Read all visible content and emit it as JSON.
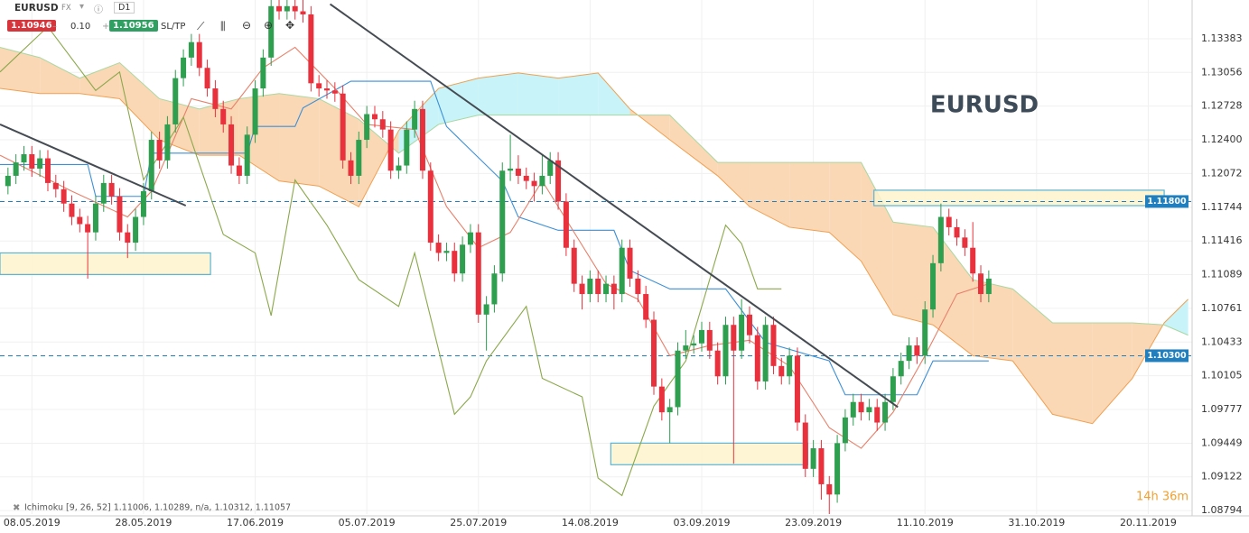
{
  "toolbar": {
    "symbol": "EURUSD",
    "market": "FX",
    "timeframe": "D1",
    "bid": "1.10946",
    "minus": "–",
    "volume": "0.10",
    "plus": "+",
    "ask": "1.10956",
    "sl_tp": "SL/TP"
  },
  "indicator_legend": "Ichimoku [9, 26, 52] 1.11006, 1.10289, n/a, 1.10312, 1.11057",
  "countdown": "14h 36m",
  "chart_data": {
    "type": "candlestick",
    "title": "EURUSD",
    "up_color": "#2e9e4f",
    "down_color": "#e8313d",
    "xlim": [
      -4,
      145.5
    ],
    "ylim": [
      1.0876,
      1.1376
    ],
    "grid": true,
    "xticks": [
      {
        "value": 0,
        "label": "08.05.2019"
      },
      {
        "value": 14,
        "label": "28.05.2019"
      },
      {
        "value": 28,
        "label": "17.06.2019"
      },
      {
        "value": 42,
        "label": "05.07.2019"
      },
      {
        "value": 56,
        "label": "25.07.2019"
      },
      {
        "value": 70,
        "label": "14.08.2019"
      },
      {
        "value": 84,
        "label": "03.09.2019"
      },
      {
        "value": 98,
        "label": "23.09.2019"
      },
      {
        "value": 112,
        "label": "11.10.2019"
      },
      {
        "value": 126,
        "label": "31.10.2019"
      },
      {
        "value": 140,
        "label": "20.11.2019"
      }
    ],
    "yticks": [
      1.13383,
      1.13056,
      1.12728,
      {
        "value": 1.124,
        "label": "1.12400"
      },
      1.12072,
      1.11744,
      1.11416,
      1.11089,
      1.10761,
      1.10433,
      1.10105,
      1.09777,
      1.09449,
      1.09122,
      1.08794
    ],
    "x": [
      -3,
      -2,
      -1,
      0,
      1,
      2,
      3,
      4,
      5,
      6,
      7,
      8,
      9,
      10,
      11,
      12,
      13,
      14,
      15,
      16,
      17,
      18,
      19,
      20,
      21,
      22,
      23,
      24,
      25,
      26,
      27,
      28,
      29,
      30,
      31,
      32,
      33,
      34,
      35,
      36,
      37,
      38,
      39,
      40,
      41,
      42,
      43,
      44,
      45,
      46,
      47,
      48,
      49,
      50,
      51,
      52,
      53,
      54,
      55,
      56,
      57,
      58,
      59,
      60,
      61,
      62,
      63,
      64,
      65,
      66,
      67,
      68,
      69,
      70,
      71,
      72,
      73,
      74,
      75,
      76,
      77,
      78,
      79,
      80,
      81,
      82,
      83,
      84,
      85,
      86,
      87,
      88,
      89,
      90,
      91,
      92,
      93,
      94,
      95,
      96,
      97,
      98,
      99,
      100,
      101,
      102,
      103,
      104,
      105,
      106,
      107,
      108,
      109,
      110,
      111,
      112,
      113,
      114,
      115,
      116,
      117,
      118,
      119,
      120
    ],
    "open": [
      1.1195,
      1.1205,
      1.1218,
      1.1226,
      1.1212,
      1.1222,
      1.1198,
      1.1192,
      1.1178,
      1.1165,
      1.1158,
      1.115,
      1.1178,
      1.1198,
      1.1185,
      1.115,
      1.114,
      1.1165,
      1.119,
      1.124,
      1.122,
      1.1255,
      1.13,
      1.132,
      1.1335,
      1.131,
      1.129,
      1.127,
      1.1255,
      1.1215,
      1.1205,
      1.1245,
      1.129,
      1.132,
      1.137,
      1.1365,
      1.137,
      1.1365,
      1.1362,
      1.1295,
      1.129,
      1.1288,
      1.1285,
      1.122,
      1.1205,
      1.124,
      1.1265,
      1.126,
      1.125,
      1.121,
      1.1215,
      1.125,
      1.127,
      1.121,
      1.114,
      1.113,
      1.1132,
      1.111,
      1.1138,
      1.115,
      1.107,
      1.108,
      1.111,
      1.121,
      1.1212,
      1.1205,
      1.12,
      1.1195,
      1.1205,
      1.122,
      1.118,
      1.1135,
      1.11,
      1.109,
      1.1105,
      1.109,
      1.11,
      1.109,
      1.1135,
      1.1105,
      1.109,
      1.1065,
      1.1,
      1.0975,
      1.098,
      1.1035,
      1.104,
      1.1042,
      1.1055,
      1.1035,
      1.101,
      1.106,
      1.1035,
      1.107,
      1.105,
      1.1005,
      1.106,
      1.102,
      1.101,
      1.103,
      1.0965,
      1.092,
      1.094,
      1.0905,
      1.0895,
      1.0945,
      1.097,
      1.0985,
      1.0975,
      1.098,
      1.0965,
      1.0985,
      1.101,
      1.1025,
      1.104,
      1.103,
      1.1075,
      1.112,
      1.1165,
      1.1155,
      1.1145,
      1.1135,
      1.111,
      1.109
    ],
    "high": [
      1.1213,
      1.1226,
      1.1234,
      1.1234,
      1.123,
      1.123,
      1.1206,
      1.12,
      1.1186,
      1.1173,
      1.1166,
      1.1186,
      1.1206,
      1.1206,
      1.1193,
      1.1158,
      1.1173,
      1.1198,
      1.1248,
      1.1248,
      1.1263,
      1.1308,
      1.1328,
      1.1343,
      1.1343,
      1.1318,
      1.1298,
      1.1278,
      1.1263,
      1.1223,
      1.1253,
      1.1298,
      1.1328,
      1.1376,
      1.1376,
      1.1376,
      1.1376,
      1.1376,
      1.137,
      1.1303,
      1.1298,
      1.1296,
      1.1293,
      1.1228,
      1.1248,
      1.1273,
      1.1273,
      1.1268,
      1.1258,
      1.1223,
      1.1258,
      1.1278,
      1.1278,
      1.1218,
      1.1148,
      1.114,
      1.114,
      1.1146,
      1.1158,
      1.1158,
      1.1088,
      1.1118,
      1.1218,
      1.1245,
      1.1225,
      1.1213,
      1.1208,
      1.1225,
      1.1228,
      1.1228,
      1.1188,
      1.1143,
      1.1108,
      1.1113,
      1.1113,
      1.1108,
      1.1108,
      1.1143,
      1.1143,
      1.1113,
      1.1098,
      1.1073,
      1.1008,
      1.0988,
      1.1043,
      1.1055,
      1.105,
      1.1063,
      1.1063,
      1.1043,
      1.1068,
      1.1068,
      1.1085,
      1.1078,
      1.1058,
      1.1068,
      1.1068,
      1.1028,
      1.1038,
      1.1038,
      1.0973,
      1.0948,
      1.0948,
      1.0913,
      1.0953,
      1.0978,
      1.0993,
      1.0993,
      1.0988,
      1.0988,
      1.0993,
      1.1018,
      1.1033,
      1.1048,
      1.1048,
      1.1083,
      1.1128,
      1.1178,
      1.1173,
      1.1163,
      1.1153,
      1.116,
      1.1118,
      1.1113
    ],
    "low": [
      1.1187,
      1.1197,
      1.121,
      1.1204,
      1.1204,
      1.119,
      1.1184,
      1.117,
      1.1157,
      1.115,
      1.1105,
      1.1142,
      1.117,
      1.1177,
      1.1142,
      1.1125,
      1.1132,
      1.1157,
      1.1182,
      1.1212,
      1.1212,
      1.1247,
      1.1292,
      1.1312,
      1.1302,
      1.1282,
      1.1262,
      1.1247,
      1.1207,
      1.1197,
      1.1197,
      1.1237,
      1.1282,
      1.1312,
      1.1357,
      1.1357,
      1.1357,
      1.1354,
      1.1287,
      1.1282,
      1.128,
      1.1277,
      1.1212,
      1.1197,
      1.1197,
      1.1232,
      1.1252,
      1.1242,
      1.1202,
      1.1202,
      1.1207,
      1.1242,
      1.1202,
      1.1132,
      1.1122,
      1.1122,
      1.1102,
      1.1102,
      1.113,
      1.1062,
      1.1035,
      1.1072,
      1.1102,
      1.12,
      1.1197,
      1.1192,
      1.118,
      1.1187,
      1.1197,
      1.1172,
      1.1127,
      1.1092,
      1.1075,
      1.1082,
      1.1082,
      1.1082,
      1.1075,
      1.1082,
      1.1097,
      1.1082,
      1.1057,
      1.0992,
      1.0967,
      1.0945,
      1.0972,
      1.1027,
      1.1032,
      1.1034,
      1.1027,
      1.1002,
      1.1002,
      1.0925,
      1.1027,
      1.1042,
      1.0997,
      1.0997,
      1.1012,
      1.1002,
      1.1002,
      1.0957,
      1.0912,
      1.0912,
      1.089,
      1.0876,
      1.0887,
      1.0937,
      1.0962,
      1.0967,
      1.0967,
      1.0957,
      1.0957,
      1.0977,
      1.1002,
      1.1017,
      1.1022,
      1.1022,
      1.1067,
      1.1112,
      1.1147,
      1.1137,
      1.1127,
      1.1102,
      1.1082,
      1.1082
    ],
    "close": [
      1.1205,
      1.1218,
      1.1226,
      1.1212,
      1.1222,
      1.1198,
      1.1192,
      1.1178,
      1.1165,
      1.1158,
      1.115,
      1.1178,
      1.1198,
      1.1185,
      1.115,
      1.114,
      1.1165,
      1.119,
      1.124,
      1.122,
      1.1255,
      1.13,
      1.132,
      1.1335,
      1.131,
      1.129,
      1.127,
      1.1255,
      1.1215,
      1.1205,
      1.1245,
      1.129,
      1.132,
      1.137,
      1.1365,
      1.137,
      1.1365,
      1.1362,
      1.1295,
      1.129,
      1.1288,
      1.1285,
      1.122,
      1.1205,
      1.124,
      1.1265,
      1.126,
      1.125,
      1.121,
      1.1215,
      1.125,
      1.127,
      1.121,
      1.114,
      1.113,
      1.1132,
      1.111,
      1.1138,
      1.115,
      1.107,
      1.108,
      1.111,
      1.121,
      1.1212,
      1.1205,
      1.12,
      1.1195,
      1.1205,
      1.122,
      1.118,
      1.1135,
      1.11,
      1.109,
      1.1105,
      1.109,
      1.11,
      1.109,
      1.1135,
      1.1105,
      1.109,
      1.1065,
      1.1,
      1.0975,
      1.098,
      1.1035,
      1.104,
      1.1042,
      1.1055,
      1.1035,
      1.101,
      1.106,
      1.1035,
      1.107,
      1.105,
      1.1005,
      1.106,
      1.102,
      1.101,
      1.103,
      1.0965,
      1.092,
      1.094,
      1.0905,
      1.0895,
      1.0945,
      1.097,
      1.0985,
      1.0975,
      1.098,
      1.0965,
      1.0985,
      1.101,
      1.1025,
      1.104,
      1.103,
      1.1075,
      1.112,
      1.1165,
      1.1155,
      1.1145,
      1.1135,
      1.111,
      1.109,
      1.1105
    ],
    "cloud": {
      "up_color": "#c8f3f8",
      "down_color": "#fad8b6",
      "a_color": "#f0a050",
      "b_color": "#a8d8a0",
      "x": [
        -4,
        1,
        6,
        11,
        16,
        21,
        26,
        31,
        36,
        41,
        46,
        51,
        56,
        61,
        66,
        71,
        75,
        80,
        86,
        90,
        95,
        100,
        104,
        108,
        113,
        118,
        123,
        128,
        133,
        138,
        142,
        145
      ],
      "a": [
        1.129,
        1.1285,
        1.1285,
        1.128,
        1.124,
        1.1225,
        1.1225,
        1.12,
        1.1195,
        1.1175,
        1.1249,
        1.129,
        1.13,
        1.1305,
        1.13,
        1.1305,
        1.127,
        1.124,
        1.1205,
        1.1175,
        1.1155,
        1.115,
        1.1122,
        1.107,
        1.106,
        1.103,
        1.1025,
        1.0973,
        1.0964,
        1.1008,
        1.1062,
        1.1085
      ],
      "b": [
        1.133,
        1.132,
        1.13,
        1.1315,
        1.128,
        1.127,
        1.128,
        1.1285,
        1.128,
        1.126,
        1.1227,
        1.1255,
        1.1264,
        1.1264,
        1.1264,
        1.1264,
        1.1264,
        1.1264,
        1.1218,
        1.1218,
        1.1218,
        1.1218,
        1.1218,
        1.116,
        1.1155,
        1.1104,
        1.1095,
        1.1062,
        1.1062,
        1.1062,
        1.106,
        1.105
      ]
    },
    "lines": [
      {
        "color": "#3b8fd8",
        "x": [
          -4,
          7,
          8,
          14,
          15,
          27,
          28,
          33,
          34,
          40,
          50,
          52,
          59,
          61,
          66,
          73,
          75,
          80,
          87,
          92,
          100,
          102,
          111,
          113,
          120
        ],
        "values": [
          1.1216,
          1.1216,
          1.1185,
          1.1185,
          1.1227,
          1.1227,
          1.1253,
          1.1253,
          1.1271,
          1.1297,
          1.1297,
          1.1253,
          1.12,
          1.1165,
          1.1152,
          1.1152,
          1.1113,
          1.1095,
          1.1095,
          1.1043,
          1.1025,
          1.0992,
          1.0992,
          1.1025,
          1.1025
        ]
      },
      {
        "color": "#e8806a",
        "x": [
          -4,
          5,
          12,
          15,
          20,
          25,
          29,
          33,
          38,
          42,
          48,
          52,
          56,
          60,
          64,
          68,
          72,
          76,
          80,
          85,
          90,
          95,
          100,
          104,
          108,
          112,
          116,
          120
        ],
        "values": [
          1.1225,
          1.119,
          1.1165,
          1.119,
          1.128,
          1.127,
          1.131,
          1.133,
          1.129,
          1.1255,
          1.125,
          1.1175,
          1.1135,
          1.115,
          1.12,
          1.115,
          1.11,
          1.1085,
          1.103,
          1.104,
          1.1045,
          1.102,
          1.096,
          1.094,
          1.0975,
          1.103,
          1.109,
          1.11
        ]
      },
      {
        "color": "#8aa84a",
        "x": [
          -4,
          2,
          8,
          11,
          14,
          19,
          24,
          28,
          30,
          33,
          37,
          41,
          46,
          48,
          53,
          55,
          57,
          62,
          64,
          69,
          71,
          74,
          78,
          82,
          87,
          89,
          91,
          94
        ],
        "values": [
          1.1306,
          1.135,
          1.1288,
          1.1306,
          1.1201,
          1.1262,
          1.1148,
          1.113,
          1.1069,
          1.1201,
          1.1157,
          1.1104,
          1.1078,
          1.113,
          1.0973,
          1.099,
          1.1025,
          1.1078,
          1.1008,
          1.099,
          1.0911,
          1.0894,
          1.0981,
          1.1025,
          1.1157,
          1.1139,
          1.1095,
          1.1095
        ]
      }
    ],
    "zones": [
      {
        "x": [
          -4,
          22.4
        ],
        "y": [
          1.1109,
          1.113
        ]
      },
      {
        "x": [
          72.6,
          97.3
        ],
        "y": [
          1.0924,
          1.0945
        ]
      },
      {
        "x": [
          105.6,
          142
        ],
        "y": [
          1.1176,
          1.1191
        ]
      }
    ],
    "trendlines": [
      {
        "x": [
          -4,
          19.3
        ],
        "y": [
          1.1255,
          1.1176
        ]
      },
      {
        "x": [
          37.4,
          108.6
        ],
        "y": [
          1.1372,
          1.098
        ]
      }
    ],
    "levels": [
      {
        "value": 1.118,
        "label": "1.11800"
      },
      {
        "value": 1.103,
        "label": "1.10300"
      }
    ],
    "level_color": "#1f7fbf"
  }
}
